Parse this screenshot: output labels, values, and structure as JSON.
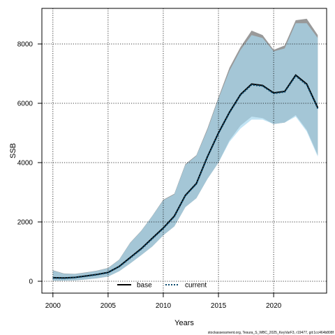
{
  "chart_data": {
    "type": "area",
    "xlabel": "Years",
    "ylabel": "SSB",
    "xlim": [
      1999.0,
      2024.8
    ],
    "ylim": [
      -400,
      9200
    ],
    "xticks": [
      2000,
      2005,
      2010,
      2015,
      2020
    ],
    "yticks": [
      0,
      2000,
      4000,
      6000,
      8000
    ],
    "grid": true,
    "legend_position": "bottom-center",
    "x": [
      2000,
      2001,
      2002,
      2003,
      2004,
      2005,
      2006,
      2007,
      2008,
      2009,
      2010,
      2011,
      2012,
      2013,
      2014,
      2015,
      2016,
      2017,
      2018,
      2019,
      2020,
      2021,
      2022,
      2023,
      2024
    ],
    "series": [
      {
        "name": "base",
        "line_style": "solid",
        "line_color": "#000000",
        "band_color": "#999999",
        "values": [
          120,
          110,
          130,
          180,
          230,
          300,
          500,
          800,
          1100,
          1450,
          1800,
          2200,
          2900,
          3300,
          4200,
          5000,
          5700,
          6300,
          6650,
          6600,
          6350,
          6400,
          6950,
          6650,
          5850
        ],
        "lower": [
          20,
          20,
          30,
          60,
          100,
          160,
          340,
          600,
          880,
          1170,
          1550,
          1850,
          2500,
          2800,
          3450,
          4000,
          4750,
          5250,
          5550,
          5500,
          5300,
          5350,
          5600,
          5100,
          4250
        ],
        "upper": [
          370,
          260,
          250,
          300,
          360,
          450,
          730,
          1300,
          1700,
          2200,
          2750,
          2950,
          3950,
          4250,
          5150,
          6200,
          7200,
          7900,
          8450,
          8300,
          7800,
          7950,
          8800,
          8850,
          8300
        ]
      },
      {
        "name": "current",
        "line_style": "dotted",
        "line_color": "#0a4a6e",
        "band_color": "#a8d8f0",
        "values": [
          110,
          100,
          125,
          170,
          220,
          290,
          490,
          780,
          1080,
          1430,
          1780,
          2180,
          2880,
          3280,
          4180,
          4980,
          5680,
          6280,
          6620,
          6580,
          6330,
          6380,
          6920,
          6620,
          5820
        ],
        "lower": [
          20,
          20,
          30,
          60,
          100,
          160,
          340,
          600,
          880,
          1170,
          1550,
          1850,
          2500,
          2800,
          3450,
          4000,
          4700,
          5150,
          5450,
          5450,
          5300,
          5350,
          5550,
          5050,
          4200
        ],
        "upper": [
          360,
          250,
          245,
          290,
          350,
          440,
          720,
          1290,
          1690,
          2190,
          2730,
          2930,
          3920,
          4230,
          5100,
          6150,
          7100,
          7800,
          8300,
          8200,
          7750,
          7850,
          8700,
          8700,
          8200
        ]
      }
    ]
  },
  "footer": {
    "text": "stockassessment.org, Tesura_S_WBC_2025_KeyVarF3, r19477, git:1cc464b808f"
  }
}
